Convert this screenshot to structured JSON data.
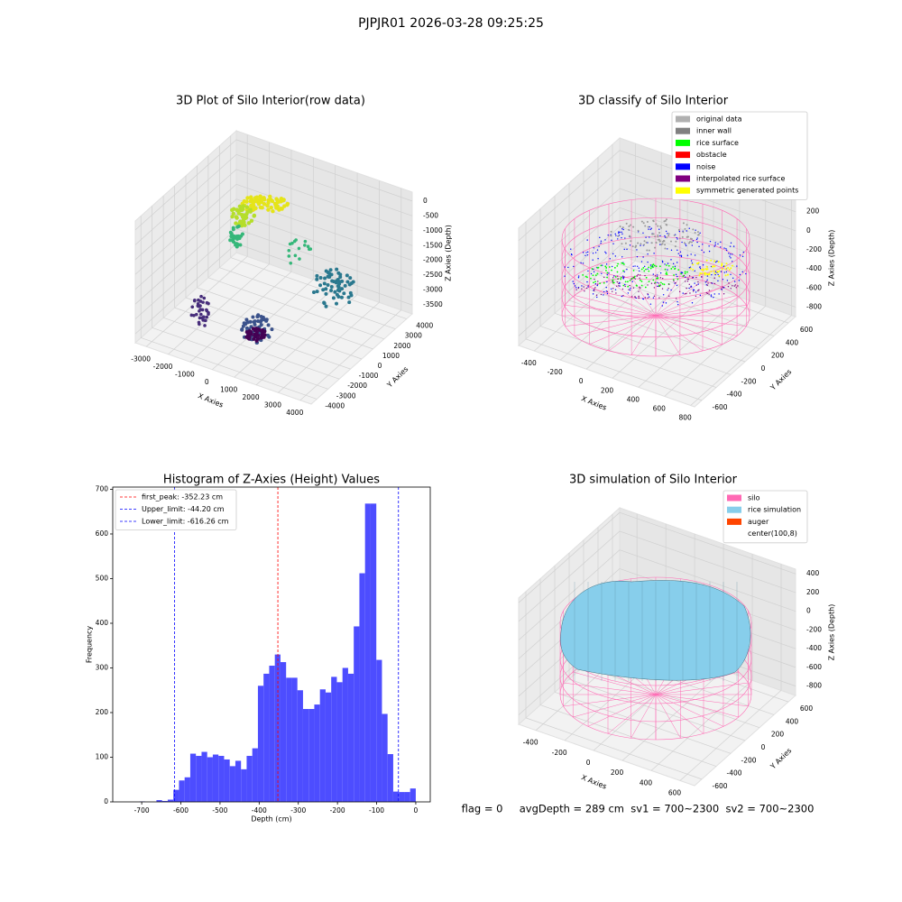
{
  "title": "PJPJR01 2026-03-28 09:25:25",
  "footer": "flag = 0     avgDepth = 289 cm  sv1 = 700~2300  sv2 = 700~2300",
  "chart_data": [
    {
      "type": "scatter3d",
      "title": "3D Plot of Silo Interior(row data)",
      "xlabel": "X Axies",
      "ylabel": "Y Axies",
      "zlabel": "Z Axies (Depth)",
      "xlim": [
        -3500,
        4500
      ],
      "xticks": [
        -3000,
        -2000,
        -1000,
        0,
        1000,
        2000,
        3000,
        4000
      ],
      "ylim": [
        -4500,
        4500
      ],
      "yticks": [
        -4000,
        -3000,
        -2000,
        -1000,
        0,
        1000,
        2000,
        3000,
        4000
      ],
      "zlim": [
        -3800,
        300
      ],
      "zticks": [
        -3500,
        -3000,
        -2500,
        -2000,
        -1500,
        -1000,
        -500,
        0
      ]
    },
    {
      "type": "scatter3d",
      "title": "3D classify of Silo Interior",
      "xlabel": "X Axies",
      "ylabel": "Y Axies",
      "zlabel": "Z Axies (Depth)",
      "xlim": [
        -520,
        830
      ],
      "xticks": [
        -400,
        -200,
        0,
        200,
        400,
        600,
        800
      ],
      "ylim": [
        -700,
        700
      ],
      "yticks": [
        -600,
        -400,
        -200,
        0,
        200,
        400,
        600
      ],
      "zlim": [
        -900,
        330
      ],
      "zticks": [
        -800,
        -600,
        -400,
        -200,
        0,
        200
      ],
      "legend": {
        "position": "upper right",
        "entries": [
          {
            "name": "original data",
            "color": "#b0b0b0"
          },
          {
            "name": "inner wall",
            "color": "#808080"
          },
          {
            "name": "rice surface",
            "color": "#00ff00"
          },
          {
            "name": "obstacle",
            "color": "#ff0000"
          },
          {
            "name": "noise",
            "color": "#0000ff"
          },
          {
            "name": "interpolated rice surface",
            "color": "#800080"
          },
          {
            "name": "symmetric generated points",
            "color": "#ffff00"
          }
        ]
      }
    },
    {
      "type": "histogram",
      "title": "Histogram of Z-Axies (Height) Values",
      "xlabel": "Depth (cm)",
      "ylabel": "Frequency",
      "color": "#4d4dff",
      "bins": [
        -720,
        -705.6,
        -691.2,
        -676.8,
        -662.4,
        -648,
        -633.6,
        -619.2,
        -604.8,
        -590.4,
        -576,
        -561.6,
        -547.2,
        -532.8,
        -518.4,
        -504,
        -489.6,
        -475.2,
        -460.8,
        -446.4,
        -432,
        -417.6,
        -403.2,
        -388.8,
        -374.4,
        -360,
        -345.6,
        -331.2,
        -316.8,
        -302.4,
        -288,
        -273.6,
        -259.2,
        -244.8,
        -230.4,
        -216,
        -201.6,
        -187.2,
        -172.8,
        -158.4,
        -144,
        -129.6,
        -115.2,
        -100.8,
        -86.4,
        -72,
        -57.6,
        -43.2,
        -28.8,
        -14.4,
        0
      ],
      "values": [
        0,
        1,
        0,
        0,
        4,
        2,
        5,
        27,
        48,
        55,
        108,
        103,
        112,
        100,
        106,
        103,
        95,
        80,
        92,
        73,
        103,
        120,
        260,
        287,
        305,
        330,
        313,
        278,
        278,
        250,
        208,
        208,
        218,
        252,
        245,
        280,
        268,
        300,
        287,
        393,
        512,
        668,
        668,
        318,
        197,
        107,
        23,
        22,
        22,
        30
      ],
      "xlim": [
        -774,
        37
      ],
      "xticks": [
        -700,
        -600,
        -500,
        -400,
        -300,
        -200,
        -100,
        0
      ],
      "ylim": [
        0,
        705
      ],
      "yticks": [
        0,
        100,
        200,
        300,
        400,
        500,
        600,
        700
      ],
      "vlines": [
        {
          "value": -352.23,
          "label": "first_peak: -352.23 cm",
          "color": "#ff0000"
        },
        {
          "value": -44.2,
          "label": "Upper_limit: -44.20 cm",
          "color": "#0000ff"
        },
        {
          "value": -616.26,
          "label": "Lower_limit: -616.26 cm",
          "color": "#0000ff"
        }
      ],
      "legend": {
        "position": "upper left"
      }
    },
    {
      "type": "surface3d",
      "title": "3D simulation of Silo Interior",
      "xlabel": "X Axies",
      "ylabel": "Y Axies",
      "zlabel": "Z Axies (Depth)",
      "xlim": [
        -520,
        700
      ],
      "xticks": [
        -400,
        -200,
        0,
        200,
        400,
        600
      ],
      "ylim": [
        -700,
        700
      ],
      "yticks": [
        -600,
        -400,
        -200,
        0,
        200,
        400,
        600
      ],
      "zlim": [
        -900,
        450
      ],
      "zticks": [
        -800,
        -600,
        -400,
        -200,
        0,
        200,
        400
      ],
      "legend": {
        "position": "upper right",
        "entries": [
          {
            "name": "silo",
            "color": "#ff69b4"
          },
          {
            "name": "rice simulation",
            "color": "#87ceeb"
          },
          {
            "name": "auger",
            "color": "#ff4500"
          },
          {
            "name": "center(100,8)",
            "color": "#ffffff"
          }
        ]
      }
    }
  ]
}
